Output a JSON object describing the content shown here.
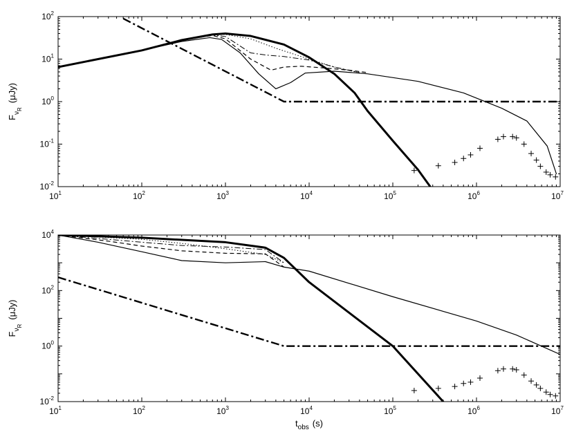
{
  "chart_data": [
    {
      "type": "line",
      "xscale": "log",
      "yscale": "log",
      "xlim": [
        10,
        10000000
      ],
      "ylim": [
        0.01,
        100
      ],
      "x_ticks": [
        {
          "base": "10",
          "exp": "1"
        },
        {
          "base": "10",
          "exp": "2"
        },
        {
          "base": "10",
          "exp": "3"
        },
        {
          "base": "10",
          "exp": "4"
        },
        {
          "base": "10",
          "exp": "5"
        },
        {
          "base": "10",
          "exp": "6"
        },
        {
          "base": "10",
          "exp": "7"
        }
      ],
      "y_ticks": [
        {
          "base": "10",
          "exp": "-2"
        },
        {
          "base": "10",
          "exp": "-1"
        },
        {
          "base": "10",
          "exp": "0"
        },
        {
          "base": "10",
          "exp": "1"
        },
        {
          "base": "10",
          "exp": "2"
        }
      ],
      "xlabel": {
        "main": "",
        "sub": "",
        "unit": ""
      },
      "ylabel": {
        "main": "F",
        "sub": "ν",
        "subsub": "R",
        "unit": "(μJy)"
      },
      "series": [
        {
          "style": "thick-solid",
          "points": [
            [
              10,
              6.5
            ],
            [
              100,
              16
            ],
            [
              300,
              28
            ],
            [
              700,
              38
            ],
            [
              1000,
              40
            ],
            [
              2000,
              35
            ],
            [
              5000,
              22
            ],
            [
              10000,
              11
            ],
            [
              20000,
              4.5
            ],
            [
              35000,
              1.6
            ],
            [
              50000,
              0.6
            ],
            [
              100000,
              0.12
            ],
            [
              200000,
              0.025
            ],
            [
              280000,
              0.01
            ]
          ]
        },
        {
          "style": "thin-solid",
          "points": [
            [
              10,
              6.5
            ],
            [
              100,
              16
            ],
            [
              300,
              26
            ],
            [
              650,
              32
            ],
            [
              900,
              29
            ],
            [
              1500,
              14
            ],
            [
              2500,
              4.5
            ],
            [
              4000,
              2.0
            ],
            [
              6000,
              2.8
            ],
            [
              9000,
              4.7
            ],
            [
              20000,
              5.2
            ],
            [
              50000,
              4.5
            ],
            [
              200000,
              3.0
            ],
            [
              700000,
              1.6
            ],
            [
              2000000,
              0.7
            ],
            [
              4000000,
              0.35
            ],
            [
              7000000,
              0.09
            ],
            [
              9000000,
              0.02
            ]
          ]
        },
        {
          "style": "dashed",
          "points": [
            [
              10,
              6.5
            ],
            [
              100,
              16
            ],
            [
              300,
              28
            ],
            [
              700,
              36
            ],
            [
              1000,
              30
            ],
            [
              2000,
              10
            ],
            [
              3500,
              5.5
            ],
            [
              5000,
              6.5
            ],
            [
              8000,
              6.8
            ],
            [
              15000,
              6.2
            ],
            [
              30000,
              5.5
            ],
            [
              50000,
              4.8
            ]
          ]
        },
        {
          "style": "dash-dot-thin",
          "points": [
            [
              10,
              6.5
            ],
            [
              100,
              16
            ],
            [
              300,
              28
            ],
            [
              700,
              37
            ],
            [
              1000,
              34
            ],
            [
              2000,
              14
            ],
            [
              3000,
              12.5
            ],
            [
              5000,
              11.5
            ],
            [
              10000,
              9.5
            ],
            [
              20000,
              6.5
            ],
            [
              40000,
              4.8
            ]
          ]
        },
        {
          "style": "dotted",
          "points": [
            [
              10,
              6.5
            ],
            [
              100,
              16
            ],
            [
              300,
              28
            ],
            [
              700,
              38
            ],
            [
              1000,
              38
            ],
            [
              2000,
              30
            ],
            [
              4000,
              18
            ],
            [
              10000,
              10
            ],
            [
              20000,
              6.5
            ],
            [
              40000,
              4.8
            ]
          ]
        },
        {
          "style": "thick-dash-dot",
          "points": [
            [
              60,
              90
            ],
            [
              5000,
              1
            ],
            [
              10000000,
              1
            ]
          ]
        }
      ],
      "markers": [
        [
          180000,
          0.024
        ],
        [
          350000,
          0.031
        ],
        [
          550000,
          0.037
        ],
        [
          700000,
          0.046
        ],
        [
          850000,
          0.056
        ],
        [
          1100000,
          0.08
        ],
        [
          1800000,
          0.13
        ],
        [
          2100000,
          0.15
        ],
        [
          2700000,
          0.15
        ],
        [
          3000000,
          0.14
        ],
        [
          3700000,
          0.1
        ],
        [
          4500000,
          0.06
        ],
        [
          5200000,
          0.042
        ],
        [
          5800000,
          0.03
        ],
        [
          6800000,
          0.022
        ],
        [
          7600000,
          0.019
        ],
        [
          8800000,
          0.017
        ]
      ]
    },
    {
      "type": "line",
      "xscale": "log",
      "yscale": "log",
      "xlim": [
        10,
        10000000
      ],
      "ylim": [
        0.01,
        10000
      ],
      "x_ticks": [
        {
          "base": "10",
          "exp": "1"
        },
        {
          "base": "10",
          "exp": "2"
        },
        {
          "base": "10",
          "exp": "3"
        },
        {
          "base": "10",
          "exp": "4"
        },
        {
          "base": "10",
          "exp": "5"
        },
        {
          "base": "10",
          "exp": "6"
        },
        {
          "base": "10",
          "exp": "7"
        }
      ],
      "y_ticks": [
        {
          "base": "10",
          "exp": "-2"
        },
        {
          "base": "10",
          "exp": "0"
        },
        {
          "base": "10",
          "exp": "2"
        },
        {
          "base": "10",
          "exp": "4"
        }
      ],
      "xlabel": {
        "main": "t",
        "sub": "obs",
        "unit": "(s)"
      },
      "ylabel": {
        "main": "F",
        "sub": "ν",
        "subsub": "R",
        "unit": "(μJy)"
      },
      "series": [
        {
          "style": "thick-solid",
          "points": [
            [
              10,
              10000
            ],
            [
              100,
              8000
            ],
            [
              1000,
              5500
            ],
            [
              3000,
              3500
            ],
            [
              5000,
              1500
            ],
            [
              10000,
              200
            ],
            [
              100000,
              1
            ],
            [
              400000,
              0.01
            ]
          ]
        },
        {
          "style": "thin-solid",
          "points": [
            [
              10,
              10000
            ],
            [
              30,
              5500
            ],
            [
              100,
              2500
            ],
            [
              300,
              1200
            ],
            [
              1000,
              1000
            ],
            [
              3000,
              1100
            ],
            [
              5000,
              700
            ],
            [
              10000,
              500
            ],
            [
              100000,
              60
            ],
            [
              1000000,
              8
            ],
            [
              3000000,
              2.5
            ],
            [
              10000000,
              0.5
            ]
          ]
        },
        {
          "style": "dashed",
          "points": [
            [
              10,
              10000
            ],
            [
              40,
              6000
            ],
            [
              100,
              4000
            ],
            [
              300,
              2700
            ],
            [
              1000,
              2200
            ],
            [
              3000,
              2100
            ],
            [
              5000,
              700
            ]
          ]
        },
        {
          "style": "dash-dot-thin",
          "points": [
            [
              10,
              10000
            ],
            [
              100,
              5500
            ],
            [
              300,
              4200
            ],
            [
              1000,
              3700
            ],
            [
              3000,
              3000
            ],
            [
              5000,
              1000
            ]
          ]
        },
        {
          "style": "dotted",
          "points": [
            [
              10,
              10000
            ],
            [
              100,
              7000
            ],
            [
              300,
              5000
            ],
            [
              1000,
              3200
            ],
            [
              3000,
              2000
            ],
            [
              5000,
              1000
            ]
          ]
        },
        {
          "style": "thick-dash-dot",
          "points": [
            [
              10,
              300
            ],
            [
              5000,
              1
            ],
            [
              10000000,
              1
            ]
          ]
        }
      ],
      "markers": [
        [
          180000,
          0.025
        ],
        [
          350000,
          0.03
        ],
        [
          550000,
          0.035
        ],
        [
          700000,
          0.045
        ],
        [
          850000,
          0.05
        ],
        [
          1100000,
          0.07
        ],
        [
          1800000,
          0.13
        ],
        [
          2100000,
          0.15
        ],
        [
          2700000,
          0.15
        ],
        [
          3000000,
          0.14
        ],
        [
          3700000,
          0.09
        ],
        [
          4500000,
          0.055
        ],
        [
          5200000,
          0.04
        ],
        [
          5800000,
          0.03
        ],
        [
          6800000,
          0.022
        ],
        [
          7600000,
          0.018
        ],
        [
          8800000,
          0.016
        ]
      ]
    }
  ]
}
